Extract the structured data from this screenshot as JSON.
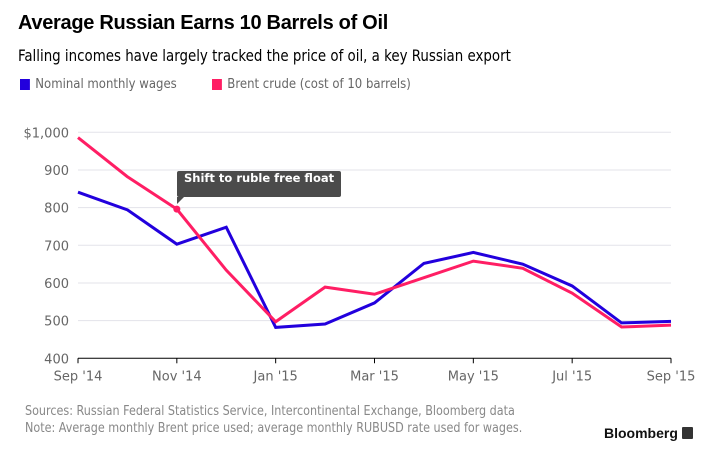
{
  "header": {
    "title": "Average Russian Earns 10 Barrels of Oil",
    "subtitle": "Falling incomes have largely tracked the price of oil, a key Russian export"
  },
  "footer": {
    "sources": "Sources: Russian Federal Statistics Service, Intercontinental Exchange, Bloomberg data",
    "note": "Note: Average monthly Brent price used; average monthly RUBUSD rate used for wages.",
    "logo": "Bloomberg"
  },
  "chart_data": {
    "type": "line",
    "title": "Average Russian Earns 10 Barrels of Oil",
    "subtitle": "Falling incomes have largely tracked the price of oil, a key Russian export",
    "x": [
      "Sep 2014",
      "Oct 2014",
      "Nov 2014",
      "Dec 2014",
      "Jan 2015",
      "Feb 2015",
      "Mar 2015",
      "Apr 2015",
      "May 2015",
      "Jun 2015",
      "Jul 2015",
      "Aug 2015",
      "Sep 2015"
    ],
    "x_tick_labels": [
      "Sep '14",
      "Nov '14",
      "Jan '15",
      "Mar '15",
      "May '15",
      "Jul '15",
      "Sep '15"
    ],
    "y_tick_labels": [
      "400",
      "500",
      "600",
      "700",
      "800",
      "900",
      "$1,000"
    ],
    "ylim": [
      400,
      1000
    ],
    "grid": true,
    "legend_position": "top-left",
    "series": [
      {
        "name": "Nominal monthly wages",
        "color": "#2200dd",
        "values": [
          841,
          794,
          703,
          748,
          482,
          491,
          547,
          652,
          681,
          650,
          592,
          494,
          498
        ]
      },
      {
        "name": "Brent crude (cost of 10 barrels)",
        "color": "#ff1e64",
        "values": [
          986,
          882,
          796,
          634,
          497,
          589,
          570,
          614,
          658,
          639,
          573,
          483,
          488
        ]
      }
    ],
    "annotations": [
      {
        "x": "Nov 2014",
        "series": 1,
        "text": "Shift to ruble free float"
      }
    ]
  }
}
